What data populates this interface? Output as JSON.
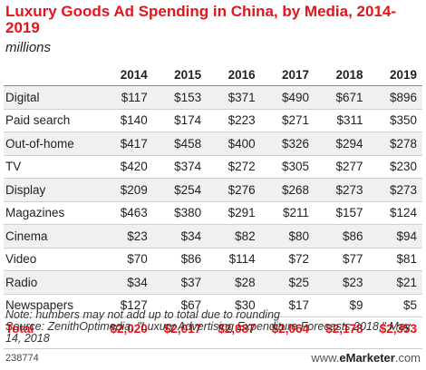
{
  "title": "Luxury Goods Ad Spending in China, by Media, 2014-2019",
  "subtitle": "millions",
  "chart_data": {
    "type": "table",
    "title": "Luxury Goods Ad Spending in China, by Media, 2014-2019",
    "unit": "millions",
    "columns": [
      "2014",
      "2015",
      "2016",
      "2017",
      "2018",
      "2019"
    ],
    "rows": [
      {
        "label": "Digital",
        "values": [
          "$117",
          "$153",
          "$371",
          "$490",
          "$671",
          "$896"
        ]
      },
      {
        "label": "Paid search",
        "values": [
          "$140",
          "$174",
          "$223",
          "$271",
          "$311",
          "$350"
        ]
      },
      {
        "label": "Out-of-home",
        "values": [
          "$417",
          "$458",
          "$400",
          "$326",
          "$294",
          "$278"
        ]
      },
      {
        "label": "TV",
        "values": [
          "$420",
          "$374",
          "$272",
          "$305",
          "$277",
          "$230"
        ]
      },
      {
        "label": "Display",
        "values": [
          "$209",
          "$254",
          "$276",
          "$268",
          "$273",
          "$273"
        ]
      },
      {
        "label": "Magazines",
        "values": [
          "$463",
          "$380",
          "$291",
          "$211",
          "$157",
          "$124"
        ]
      },
      {
        "label": "Cinema",
        "values": [
          "$23",
          "$34",
          "$82",
          "$80",
          "$86",
          "$94"
        ]
      },
      {
        "label": "Video",
        "values": [
          "$70",
          "$86",
          "$114",
          "$72",
          "$77",
          "$81"
        ]
      },
      {
        "label": "Radio",
        "values": [
          "$34",
          "$37",
          "$28",
          "$25",
          "$23",
          "$21"
        ]
      },
      {
        "label": "Newspapers",
        "values": [
          "$127",
          "$67",
          "$30",
          "$17",
          "$9",
          "$5"
        ]
      }
    ],
    "total": {
      "label": "Total",
      "values": [
        "$2,020",
        "$2,017",
        "$2,087",
        "$2,064",
        "$2,178",
        "$2,353"
      ]
    }
  },
  "note": "Note: numbers may not add up to total due to rounding",
  "source": "Source: ZenithOptimedia, \"Luxury Advertising Expenditure Forecasts 2018,\" May 14, 2018",
  "chart_id": "238774",
  "brand": {
    "prefix": "www.",
    "name": "eMarketer",
    "suffix": ".com"
  },
  "colors": {
    "accent": "#e4141b",
    "stripe": "#f0f0f0"
  }
}
